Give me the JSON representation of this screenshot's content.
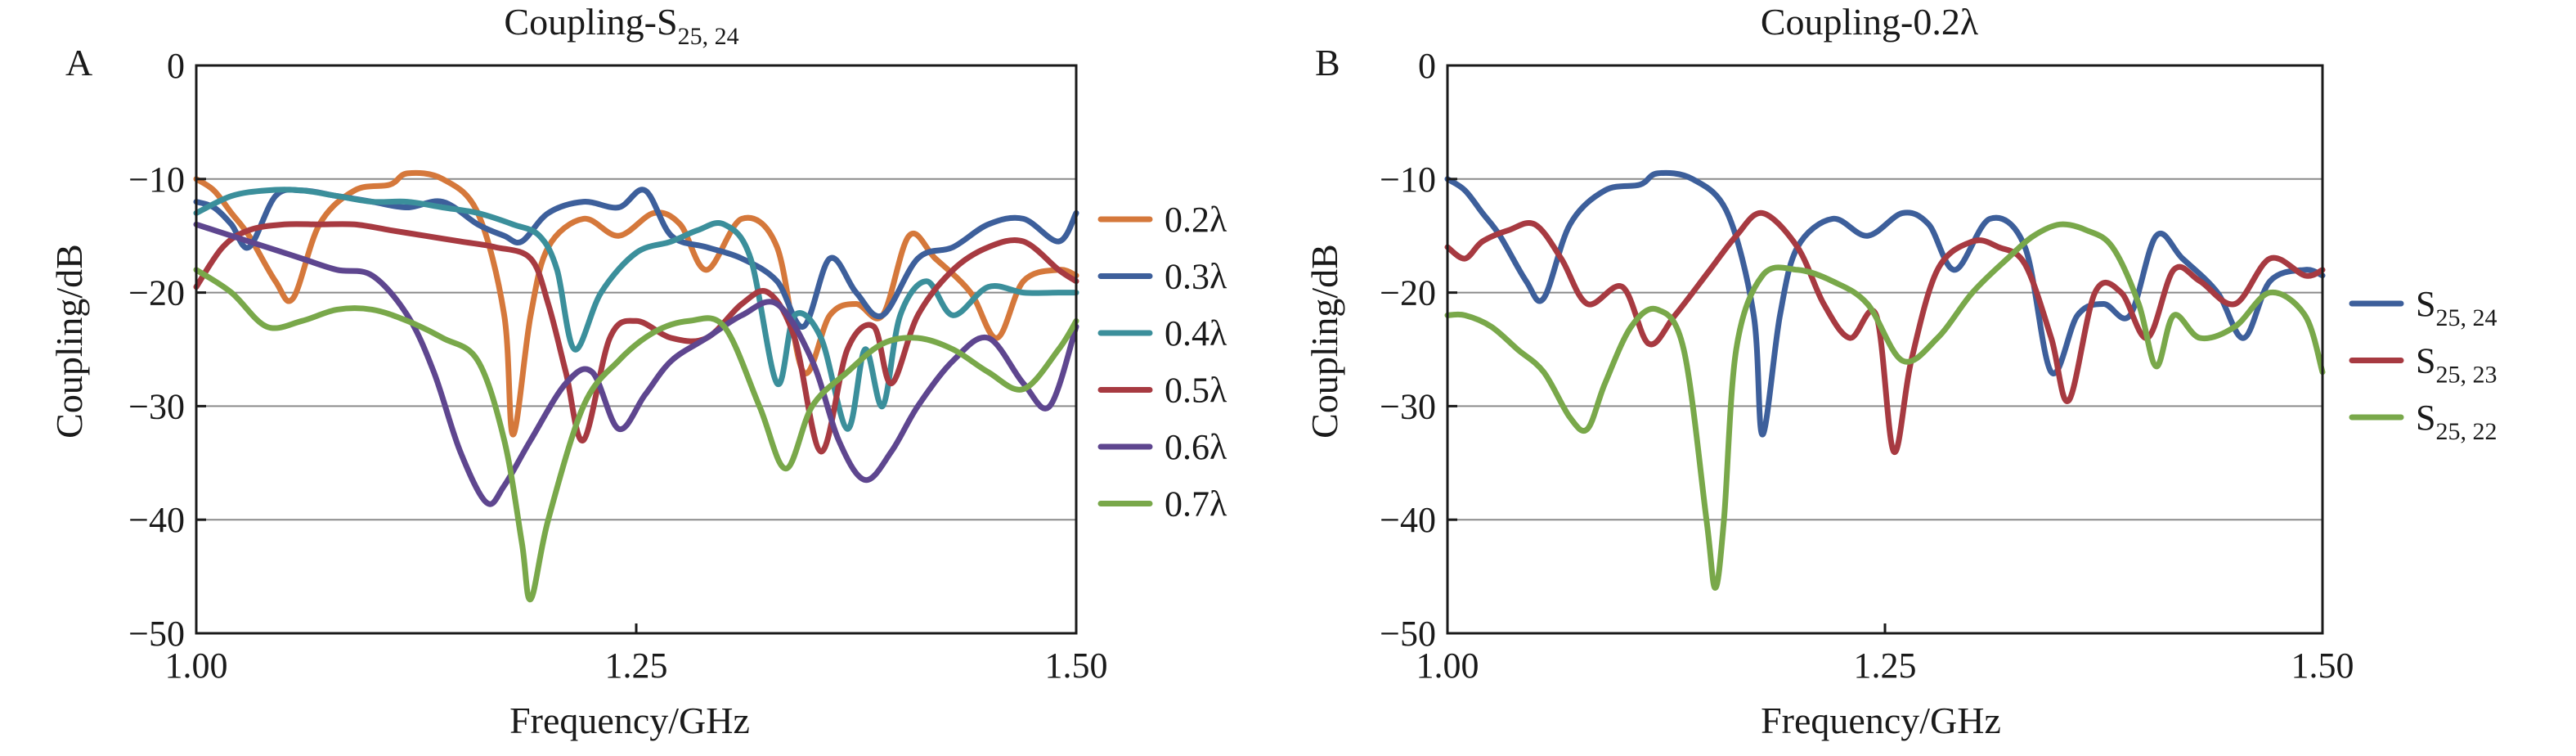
{
  "chart_data": [
    {
      "type": "line",
      "panel_label": "A",
      "title": "Coupling-S25, 24",
      "title_main": "Coupling-S",
      "title_sub": "25, 24",
      "xlabel": "Frequency/GHz",
      "ylabel": "Coupling/dB",
      "xlim": [
        1.0,
        1.5
      ],
      "ylim": [
        -50,
        0
      ],
      "xticks": [
        "1.00",
        "1.25",
        "1.50"
      ],
      "yticks": [
        "0",
        "−10",
        "−20",
        "−30",
        "−40",
        "−50"
      ],
      "grid": "horizontal",
      "legend_position": "right",
      "series": [
        {
          "name": "0.2λ",
          "color": "#d5783b",
          "x": [
            1.0,
            1.01,
            1.02,
            1.03,
            1.045,
            1.055,
            1.07,
            1.09,
            1.11,
            1.12,
            1.14,
            1.16,
            1.175,
            1.18,
            1.19,
            1.2,
            1.22,
            1.24,
            1.26,
            1.275,
            1.29,
            1.31,
            1.33,
            1.345,
            1.36,
            1.375,
            1.39,
            1.405,
            1.42,
            1.44,
            1.455,
            1.47,
            1.49,
            1.5
          ],
          "y": [
            -10,
            -11,
            -13,
            -15,
            -19,
            -20.5,
            -14,
            -11,
            -10.5,
            -9.5,
            -10,
            -13,
            -22,
            -32.5,
            -22,
            -16,
            -13.5,
            -15,
            -13,
            -14,
            -18,
            -13.5,
            -16,
            -27,
            -22,
            -21,
            -22,
            -15,
            -17,
            -20,
            -24,
            -19,
            -18,
            -18.5
          ]
        },
        {
          "name": "0.3λ",
          "color": "#3d5f9b",
          "x": [
            1.0,
            1.01,
            1.02,
            1.03,
            1.045,
            1.06,
            1.08,
            1.1,
            1.12,
            1.14,
            1.16,
            1.175,
            1.185,
            1.2,
            1.22,
            1.24,
            1.255,
            1.27,
            1.29,
            1.31,
            1.33,
            1.345,
            1.36,
            1.375,
            1.39,
            1.41,
            1.43,
            1.45,
            1.47,
            1.49,
            1.5
          ],
          "y": [
            -12,
            -12.5,
            -14,
            -16,
            -11.5,
            -11,
            -11.5,
            -12,
            -12.5,
            -12,
            -14,
            -15,
            -15.5,
            -13,
            -12,
            -12.5,
            -11,
            -15,
            -16,
            -17,
            -19,
            -23,
            -17,
            -20,
            -22,
            -17,
            -16,
            -14,
            -13.5,
            -15.5,
            -13
          ]
        },
        {
          "name": "0.4λ",
          "color": "#3b8f9b",
          "x": [
            1.0,
            1.02,
            1.04,
            1.06,
            1.08,
            1.1,
            1.12,
            1.14,
            1.16,
            1.18,
            1.195,
            1.205,
            1.215,
            1.23,
            1.25,
            1.27,
            1.285,
            1.3,
            1.315,
            1.33,
            1.34,
            1.355,
            1.37,
            1.38,
            1.39,
            1.4,
            1.415,
            1.43,
            1.45,
            1.47,
            1.49,
            1.5
          ],
          "y": [
            -13,
            -11.5,
            -11,
            -11,
            -11.5,
            -12,
            -12,
            -12.5,
            -13,
            -14,
            -15,
            -18,
            -25,
            -20,
            -16.5,
            -15.5,
            -14.5,
            -14,
            -17,
            -28,
            -22,
            -24,
            -32,
            -25,
            -30,
            -22,
            -19,
            -22,
            -19.5,
            -20,
            -20,
            -20
          ]
        },
        {
          "name": "0.5λ",
          "color": "#a73a41",
          "x": [
            1.0,
            1.015,
            1.03,
            1.05,
            1.07,
            1.09,
            1.11,
            1.13,
            1.15,
            1.17,
            1.19,
            1.2,
            1.21,
            1.22,
            1.235,
            1.25,
            1.27,
            1.29,
            1.31,
            1.325,
            1.34,
            1.355,
            1.37,
            1.385,
            1.395,
            1.41,
            1.43,
            1.45,
            1.47,
            1.49,
            1.5
          ],
          "y": [
            -19.5,
            -16,
            -14.5,
            -14,
            -14,
            -14,
            -14.5,
            -15,
            -15.5,
            -16,
            -17,
            -21,
            -27,
            -33,
            -24,
            -22.5,
            -24,
            -24,
            -21,
            -20,
            -24,
            -34,
            -25,
            -23,
            -28,
            -22,
            -18,
            -16,
            -15.5,
            -18,
            -19
          ]
        },
        {
          "name": "0.6λ",
          "color": "#5e468f",
          "x": [
            1.0,
            1.02,
            1.04,
            1.06,
            1.08,
            1.1,
            1.12,
            1.135,
            1.15,
            1.165,
            1.175,
            1.19,
            1.21,
            1.225,
            1.24,
            1.255,
            1.27,
            1.29,
            1.31,
            1.33,
            1.35,
            1.365,
            1.38,
            1.395,
            1.41,
            1.43,
            1.45,
            1.47,
            1.485,
            1.5
          ],
          "y": [
            -14,
            -15,
            -16,
            -17,
            -18,
            -18.5,
            -22,
            -27,
            -34,
            -38.5,
            -37,
            -33,
            -28,
            -27,
            -32,
            -29,
            -26,
            -24,
            -22,
            -21,
            -26,
            -33,
            -36.5,
            -34,
            -30,
            -26,
            -24,
            -28,
            -30,
            -23
          ]
        },
        {
          "name": "0.7λ",
          "color": "#79a84a",
          "x": [
            1.0,
            1.02,
            1.04,
            1.06,
            1.08,
            1.1,
            1.12,
            1.14,
            1.16,
            1.175,
            1.185,
            1.19,
            1.2,
            1.22,
            1.24,
            1.26,
            1.28,
            1.3,
            1.32,
            1.335,
            1.35,
            1.37,
            1.39,
            1.41,
            1.43,
            1.45,
            1.47,
            1.49,
            1.5
          ],
          "y": [
            -18,
            -20,
            -23,
            -22.5,
            -21.5,
            -21.5,
            -22.5,
            -24,
            -26,
            -33,
            -42,
            -47,
            -40,
            -30,
            -26,
            -23.5,
            -22.5,
            -23,
            -30,
            -35.5,
            -30,
            -27,
            -24.5,
            -24,
            -25,
            -27,
            -28.5,
            -25,
            -22.5
          ]
        }
      ]
    },
    {
      "type": "line",
      "panel_label": "B",
      "title": "Coupling-0.2λ",
      "xlabel": "Frequency/GHz",
      "ylabel": "Coupling/dB",
      "xlim": [
        1.0,
        1.5
      ],
      "ylim": [
        -50,
        0
      ],
      "xticks": [
        "1.00",
        "1.25",
        "1.50"
      ],
      "yticks": [
        "0",
        "−10",
        "−20",
        "−30",
        "−40",
        "−50"
      ],
      "grid": "horizontal",
      "legend_position": "right",
      "series": [
        {
          "name": "S25, 24",
          "name_main": "S",
          "name_sub": "25, 24",
          "color": "#3d5f9b",
          "x": [
            1.0,
            1.01,
            1.02,
            1.03,
            1.045,
            1.055,
            1.07,
            1.09,
            1.11,
            1.12,
            1.14,
            1.16,
            1.175,
            1.18,
            1.19,
            1.2,
            1.22,
            1.24,
            1.26,
            1.275,
            1.29,
            1.31,
            1.33,
            1.345,
            1.36,
            1.375,
            1.39,
            1.405,
            1.42,
            1.44,
            1.455,
            1.47,
            1.49,
            1.5
          ],
          "y": [
            -10,
            -11,
            -13,
            -15,
            -19,
            -20.5,
            -14,
            -11,
            -10.5,
            -9.5,
            -10,
            -13,
            -22,
            -32.5,
            -22,
            -16,
            -13.5,
            -15,
            -13,
            -14,
            -18,
            -13.5,
            -16,
            -27,
            -22,
            -21,
            -22,
            -15,
            -17,
            -20,
            -24,
            -19,
            -18,
            -18.5
          ]
        },
        {
          "name": "S25, 23",
          "name_main": "S",
          "name_sub": "25, 23",
          "color": "#a73a41",
          "x": [
            1.0,
            1.01,
            1.02,
            1.035,
            1.05,
            1.065,
            1.08,
            1.1,
            1.115,
            1.13,
            1.15,
            1.165,
            1.18,
            1.2,
            1.215,
            1.23,
            1.245,
            1.255,
            1.265,
            1.28,
            1.3,
            1.315,
            1.33,
            1.345,
            1.355,
            1.37,
            1.385,
            1.4,
            1.415,
            1.43,
            1.45,
            1.47,
            1.49,
            1.5
          ],
          "y": [
            -16,
            -17,
            -15.5,
            -14.5,
            -14,
            -17,
            -21,
            -19.5,
            -24.5,
            -22,
            -18,
            -15,
            -13,
            -16,
            -21,
            -24,
            -22,
            -34,
            -26,
            -18,
            -15.5,
            -16,
            -17.5,
            -24,
            -29.5,
            -20,
            -20,
            -24,
            -18,
            -19,
            -21,
            -17,
            -18.5,
            -18
          ]
        },
        {
          "name": "S25, 22",
          "name_main": "S",
          "name_sub": "25, 22",
          "color": "#79a84a",
          "x": [
            1.0,
            1.01,
            1.025,
            1.04,
            1.055,
            1.07,
            1.08,
            1.09,
            1.105,
            1.12,
            1.135,
            1.148,
            1.153,
            1.158,
            1.165,
            1.18,
            1.2,
            1.22,
            1.24,
            1.26,
            1.28,
            1.3,
            1.32,
            1.335,
            1.35,
            1.365,
            1.38,
            1.395,
            1.405,
            1.415,
            1.43,
            1.45,
            1.47,
            1.49,
            1.5
          ],
          "y": [
            -22,
            -22,
            -23,
            -25,
            -27,
            -31,
            -32,
            -28,
            -23,
            -21.5,
            -25,
            -40,
            -46,
            -40,
            -25,
            -18.5,
            -18,
            -19,
            -21,
            -26,
            -24,
            -20,
            -17,
            -15,
            -14,
            -14.5,
            -16,
            -21,
            -26.5,
            -22,
            -24,
            -23,
            -20,
            -22,
            -27
          ]
        }
      ]
    }
  ]
}
